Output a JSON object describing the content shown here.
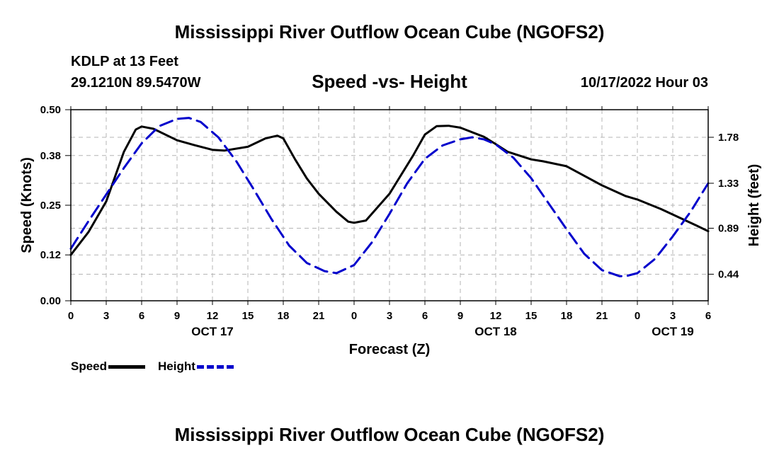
{
  "header": {
    "title": "Mississippi River Outflow Ocean Cube (NGOFS2)",
    "station": "KDLP at 13 Feet",
    "coordinates": "29.1210N  89.5470W",
    "subtitle": "Speed -vs- Height",
    "datetime": "10/17/2022 Hour 03"
  },
  "footer": {
    "title": "Mississippi River Outflow Ocean Cube (NGOFS2)"
  },
  "legend": {
    "speed_label": "Speed",
    "height_label": "Height"
  },
  "colors": {
    "speed": "#000000",
    "height": "#0000cc",
    "grid": "#b4b4b4"
  },
  "chart_data": {
    "type": "line",
    "title": "Speed -vs- Height",
    "xlabel": "Forecast (Z)",
    "ylabel": "Speed (Knots)",
    "y2label": "Height (feet)",
    "xlim": [
      0,
      54
    ],
    "ylim": [
      0,
      0.5
    ],
    "y2lim": [
      0.18,
      2.05
    ],
    "x_ticks": [
      0,
      3,
      6,
      9,
      12,
      15,
      18,
      21,
      24,
      27,
      30,
      33,
      36,
      39,
      42,
      45,
      48,
      51,
      54
    ],
    "x_tick_labels": [
      "0",
      "3",
      "6",
      "9",
      "12",
      "15",
      "18",
      "21",
      "0",
      "3",
      "6",
      "9",
      "12",
      "15",
      "18",
      "21",
      "0",
      "3",
      "6"
    ],
    "date_labels": [
      {
        "x": 12,
        "label": "OCT 17"
      },
      {
        "x": 36,
        "label": "OCT 18"
      },
      {
        "x": 51,
        "label": "OCT 19"
      }
    ],
    "y_ticks": [
      0.0,
      0.12,
      0.25,
      0.38,
      0.5
    ],
    "y_tick_labels": [
      "0.00",
      "0.12",
      "0.25",
      "0.38",
      "0.50"
    ],
    "y2_ticks": [
      0.44,
      0.89,
      1.33,
      1.78
    ],
    "y2_tick_labels": [
      "0.44",
      "0.89",
      "1.33",
      "1.78"
    ],
    "grid": true,
    "series": [
      {
        "name": "Speed",
        "axis": "left",
        "style": "solid",
        "x": [
          0,
          1.5,
          3,
          4.5,
          5.5,
          6,
          7,
          9,
          10.5,
          12,
          13,
          15,
          16.5,
          17.5,
          18,
          19,
          20,
          21,
          22.5,
          23.5,
          24,
          25,
          27,
          29,
          30,
          31,
          32,
          33,
          35,
          36,
          37,
          39,
          40,
          42,
          45,
          47,
          48,
          50,
          53,
          54
        ],
        "values": [
          0.12,
          0.18,
          0.26,
          0.39,
          0.448,
          0.456,
          0.45,
          0.42,
          0.407,
          0.395,
          0.393,
          0.403,
          0.425,
          0.432,
          0.425,
          0.37,
          0.32,
          0.28,
          0.233,
          0.207,
          0.204,
          0.21,
          0.28,
          0.38,
          0.435,
          0.457,
          0.458,
          0.453,
          0.429,
          0.41,
          0.39,
          0.37,
          0.365,
          0.352,
          0.302,
          0.274,
          0.265,
          0.24,
          0.197,
          0.182
        ]
      },
      {
        "name": "Height",
        "axis": "right",
        "style": "dashed",
        "x": [
          0,
          1.5,
          3,
          4.5,
          6,
          7.5,
          9,
          10,
          11,
          12.5,
          14,
          15.5,
          17,
          18.5,
          20,
          21.5,
          22.5,
          24,
          25.5,
          27,
          28.5,
          30,
          31.5,
          33,
          34,
          35,
          36,
          37.5,
          39,
          40.5,
          42,
          43.5,
          45,
          46.5,
          47,
          48,
          49.5,
          51,
          52.5,
          54
        ],
        "values": [
          0.69,
          0.96,
          1.22,
          1.48,
          1.72,
          1.89,
          1.96,
          1.97,
          1.93,
          1.78,
          1.55,
          1.27,
          0.98,
          0.72,
          0.55,
          0.47,
          0.45,
          0.53,
          0.75,
          1.03,
          1.33,
          1.57,
          1.7,
          1.76,
          1.78,
          1.76,
          1.71,
          1.58,
          1.38,
          1.13,
          0.88,
          0.64,
          0.48,
          0.42,
          0.42,
          0.45,
          0.59,
          0.81,
          1.05,
          1.33
        ]
      }
    ]
  }
}
